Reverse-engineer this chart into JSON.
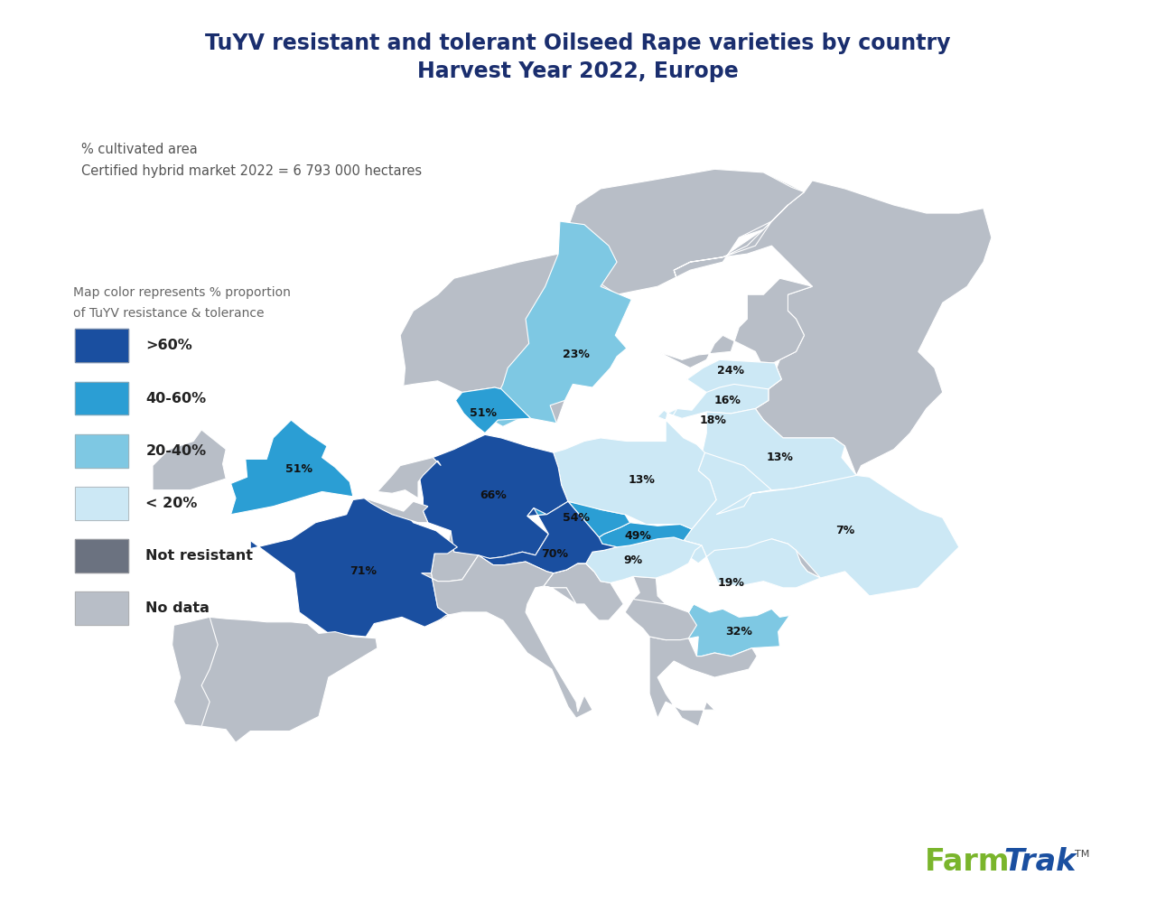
{
  "title_line1": "TuYV resistant and tolerant Oilseed Rape varieties by country",
  "title_line2": "Harvest Year 2022, Europe",
  "title_color": "#1a2e6e",
  "subtitle_line1": "% cultivated area",
  "subtitle_line2": "Certified hybrid market 2022 = 6 793 000 hectares",
  "subtitle_color": "#555555",
  "legend_title_line1": "Map color represents % proportion",
  "legend_title_line2": "of TuYV resistance & tolerance",
  "legend_color": "#666666",
  "background_color": "#ffffff",
  "ocean_color": "#cde8f5",
  "no_data_color": "#b8bec7",
  "not_resistant_color": "#6b7280",
  "color_gt60": "#1a4fa0",
  "color_40_60": "#2b9ed4",
  "color_20_40": "#7ec8e3",
  "color_lt20": "#cce8f5",
  "farmtrak_farm_color": "#7ab52c",
  "farmtrak_trak_color": "#1a4fa0",
  "legend_items": [
    {
      "label": ">60%",
      "color": "#1a4fa0"
    },
    {
      "label": "40-60%",
      "color": "#2b9ed4"
    },
    {
      "label": "20-40%",
      "color": "#7ec8e3"
    },
    {
      "label": "< 20%",
      "color": "#cce8f5"
    },
    {
      "label": "Not resistant",
      "color": "#6b7280"
    },
    {
      "label": "No data",
      "color": "#b8bec7"
    }
  ]
}
